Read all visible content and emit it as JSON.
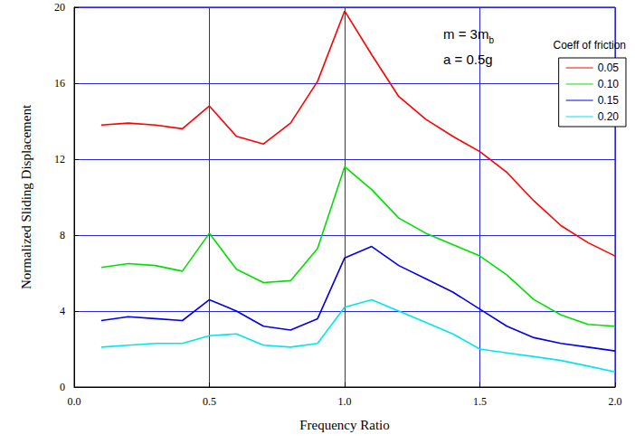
{
  "chart_data": {
    "type": "line",
    "x_label": "Frequency Ratio",
    "y_label": "Normalized Sliding Displacement",
    "x": [
      0.1,
      0.2,
      0.3,
      0.4,
      0.5,
      0.6,
      0.7,
      0.8,
      0.9,
      1.0,
      1.1,
      1.2,
      1.3,
      1.4,
      1.5,
      1.6,
      1.7,
      1.8,
      1.9,
      2.0
    ],
    "series": [
      {
        "name": "0.05",
        "color": "#ff0000",
        "values": [
          13.8,
          13.9,
          13.8,
          13.6,
          14.8,
          13.2,
          12.8,
          13.9,
          16.1,
          19.8,
          17.5,
          15.3,
          14.1,
          13.2,
          12.4,
          11.3,
          9.8,
          8.5,
          7.6,
          6.9
        ]
      },
      {
        "name": "0.10",
        "color": "#00e000",
        "values": [
          6.3,
          6.5,
          6.4,
          6.1,
          8.1,
          6.2,
          5.5,
          5.6,
          7.3,
          11.6,
          10.4,
          8.9,
          8.1,
          7.5,
          6.9,
          5.9,
          4.6,
          3.8,
          3.3,
          3.2
        ]
      },
      {
        "name": "0.15",
        "color": "#0000ee",
        "values": [
          3.5,
          3.7,
          3.6,
          3.5,
          4.6,
          4.0,
          3.2,
          3.0,
          3.6,
          6.8,
          7.4,
          6.4,
          5.7,
          5.0,
          4.1,
          3.2,
          2.6,
          2.3,
          2.1,
          1.9
        ]
      },
      {
        "name": "0.20",
        "color": "#00e5ee",
        "values": [
          2.1,
          2.2,
          2.3,
          2.3,
          2.7,
          2.8,
          2.2,
          2.1,
          2.3,
          4.2,
          4.6,
          4.0,
          3.4,
          2.8,
          2.0,
          1.8,
          1.6,
          1.4,
          1.1,
          0.8
        ]
      }
    ],
    "xlim": [
      0,
      2
    ],
    "xticks": [
      {
        "value": 0,
        "label": "0.0"
      },
      {
        "value": 0.5,
        "label": "0.5"
      },
      {
        "value": 1,
        "label": "1.0"
      },
      {
        "value": 1.5,
        "label": "1.5"
      },
      {
        "value": 2,
        "label": "2.0"
      }
    ],
    "ylim": [
      0,
      20
    ],
    "yticks": [
      0,
      4,
      8,
      12,
      16,
      20
    ],
    "grid": true,
    "legend": "upper right",
    "legend_title": "Coeff of friction",
    "annotations": [
      {
        "text": "m = 3m",
        "subscript": "b"
      },
      {
        "text": "a = 0.5g"
      }
    ]
  }
}
